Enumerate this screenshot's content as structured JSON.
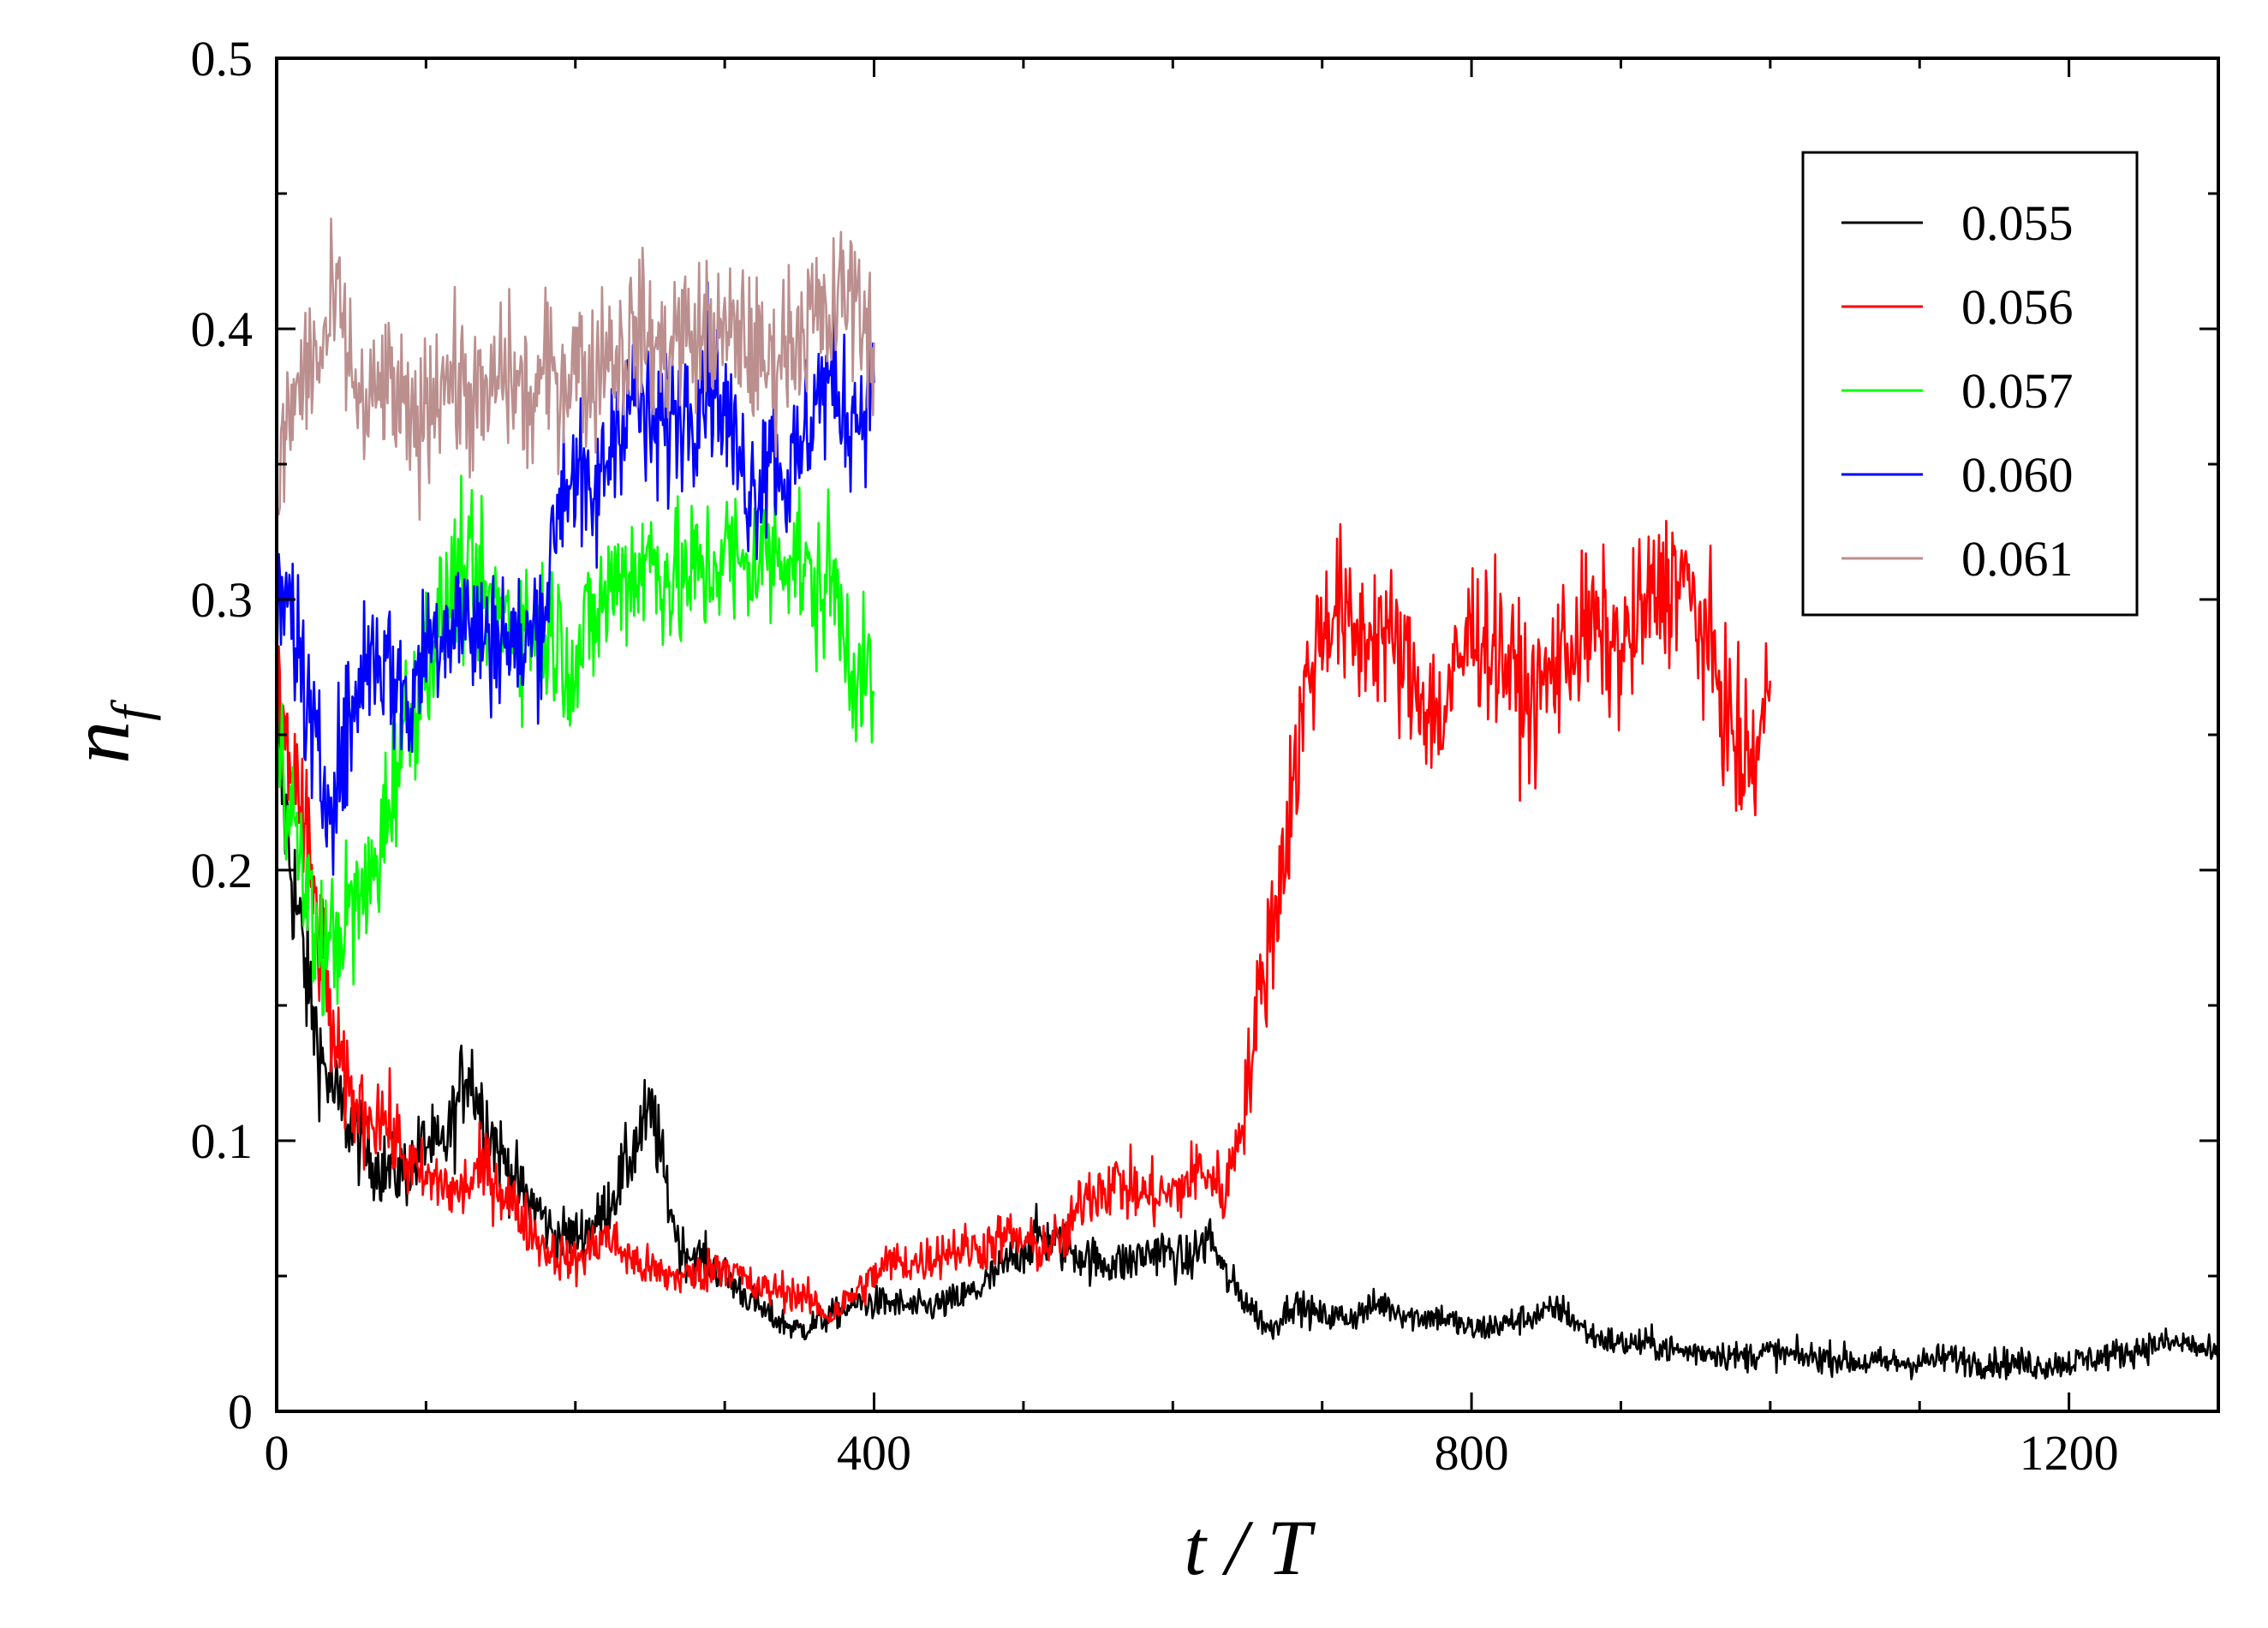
{
  "chart_data": {
    "type": "line",
    "xlabel": "t / T",
    "ylabel": "n_f",
    "xlim": [
      0,
      1300
    ],
    "ylim": [
      0,
      0.5
    ],
    "xticks": [
      0,
      400,
      800,
      1200
    ],
    "yticks": [
      0,
      0.1,
      0.2,
      0.3,
      0.4,
      0.5
    ],
    "xtick_labels": [
      "0",
      "400",
      "800",
      "1200"
    ],
    "ytick_labels": [
      "0",
      "0.1",
      "0.2",
      "0.3",
      "0.4",
      "0.5"
    ],
    "x_minor_step": 100,
    "y_minor_step": 0.05,
    "grid": false,
    "legend_position": "top-right",
    "series": [
      {
        "name": "0.055",
        "color": "#000000",
        "x_end": 1300,
        "points": [
          [
            0,
            0.25
          ],
          [
            10,
            0.2
          ],
          [
            20,
            0.16
          ],
          [
            30,
            0.13
          ],
          [
            40,
            0.115
          ],
          [
            50,
            0.105
          ],
          [
            60,
            0.095
          ],
          [
            70,
            0.09
          ],
          [
            80,
            0.088
          ],
          [
            90,
            0.09
          ],
          [
            100,
            0.1
          ],
          [
            110,
            0.095
          ],
          [
            120,
            0.11
          ],
          [
            128,
            0.13
          ],
          [
            135,
            0.115
          ],
          [
            150,
            0.095
          ],
          [
            165,
            0.08
          ],
          [
            175,
            0.075
          ],
          [
            185,
            0.065
          ],
          [
            200,
            0.065
          ],
          [
            215,
            0.07
          ],
          [
            230,
            0.085
          ],
          [
            245,
            0.105
          ],
          [
            252,
            0.11
          ],
          [
            260,
            0.085
          ],
          [
            270,
            0.06
          ],
          [
            290,
            0.055
          ],
          [
            310,
            0.045
          ],
          [
            330,
            0.035
          ],
          [
            350,
            0.03
          ],
          [
            370,
            0.035
          ],
          [
            390,
            0.04
          ],
          [
            410,
            0.04
          ],
          [
            430,
            0.038
          ],
          [
            450,
            0.04
          ],
          [
            470,
            0.045
          ],
          [
            490,
            0.055
          ],
          [
            510,
            0.065
          ],
          [
            530,
            0.06
          ],
          [
            550,
            0.055
          ],
          [
            570,
            0.055
          ],
          [
            590,
            0.06
          ],
          [
            610,
            0.055
          ],
          [
            625,
            0.065
          ],
          [
            635,
            0.05
          ],
          [
            650,
            0.04
          ],
          [
            665,
            0.03
          ],
          [
            680,
            0.04
          ],
          [
            700,
            0.035
          ],
          [
            720,
            0.035
          ],
          [
            740,
            0.04
          ],
          [
            760,
            0.035
          ],
          [
            780,
            0.035
          ],
          [
            800,
            0.03
          ],
          [
            820,
            0.032
          ],
          [
            840,
            0.035
          ],
          [
            860,
            0.038
          ],
          [
            880,
            0.028
          ],
          [
            900,
            0.025
          ],
          [
            920,
            0.025
          ],
          [
            940,
            0.022
          ],
          [
            960,
            0.022
          ],
          [
            980,
            0.02
          ],
          [
            1000,
            0.022
          ],
          [
            1020,
            0.02
          ],
          [
            1040,
            0.02
          ],
          [
            1060,
            0.018
          ],
          [
            1080,
            0.018
          ],
          [
            1100,
            0.018
          ],
          [
            1120,
            0.02
          ],
          [
            1140,
            0.018
          ],
          [
            1160,
            0.018
          ],
          [
            1180,
            0.017
          ],
          [
            1200,
            0.018
          ],
          [
            1220,
            0.02
          ],
          [
            1240,
            0.022
          ],
          [
            1260,
            0.025
          ],
          [
            1280,
            0.025
          ],
          [
            1300,
            0.02
          ]
        ]
      },
      {
        "name": "0.056",
        "color": "#ff0000",
        "x_end": 1000,
        "points": [
          [
            0,
            0.26
          ],
          [
            10,
            0.24
          ],
          [
            20,
            0.21
          ],
          [
            30,
            0.17
          ],
          [
            40,
            0.13
          ],
          [
            50,
            0.115
          ],
          [
            60,
            0.11
          ],
          [
            70,
            0.11
          ],
          [
            80,
            0.1
          ],
          [
            90,
            0.09
          ],
          [
            100,
            0.085
          ],
          [
            110,
            0.085
          ],
          [
            120,
            0.08
          ],
          [
            140,
            0.09
          ],
          [
            160,
            0.075
          ],
          [
            180,
            0.06
          ],
          [
            200,
            0.055
          ],
          [
            220,
            0.065
          ],
          [
            240,
            0.055
          ],
          [
            260,
            0.05
          ],
          [
            280,
            0.05
          ],
          [
            300,
            0.055
          ],
          [
            320,
            0.045
          ],
          [
            340,
            0.045
          ],
          [
            360,
            0.04
          ],
          [
            370,
            0.035
          ],
          [
            390,
            0.045
          ],
          [
            410,
            0.055
          ],
          [
            430,
            0.055
          ],
          [
            450,
            0.06
          ],
          [
            470,
            0.06
          ],
          [
            490,
            0.065
          ],
          [
            510,
            0.06
          ],
          [
            530,
            0.065
          ],
          [
            540,
            0.08
          ],
          [
            560,
            0.085
          ],
          [
            580,
            0.08
          ],
          [
            600,
            0.08
          ],
          [
            620,
            0.09
          ],
          [
            635,
            0.08
          ],
          [
            650,
            0.12
          ],
          [
            660,
            0.16
          ],
          [
            670,
            0.19
          ],
          [
            680,
            0.23
          ],
          [
            690,
            0.27
          ],
          [
            700,
            0.29
          ],
          [
            710,
            0.3
          ],
          [
            720,
            0.285
          ],
          [
            740,
            0.29
          ],
          [
            760,
            0.27
          ],
          [
            780,
            0.255
          ],
          [
            800,
            0.29
          ],
          [
            820,
            0.28
          ],
          [
            840,
            0.26
          ],
          [
            860,
            0.28
          ],
          [
            880,
            0.29
          ],
          [
            900,
            0.28
          ],
          [
            920,
            0.3
          ],
          [
            940,
            0.31
          ],
          [
            960,
            0.28
          ],
          [
            970,
            0.26
          ],
          [
            980,
            0.24
          ],
          [
            990,
            0.24
          ],
          [
            1000,
            0.27
          ]
        ]
      },
      {
        "name": "0.057",
        "color": "#00ff00",
        "x_end": 400,
        "points": [
          [
            0,
            0.26
          ],
          [
            10,
            0.22
          ],
          [
            20,
            0.19
          ],
          [
            30,
            0.17
          ],
          [
            40,
            0.175
          ],
          [
            50,
            0.185
          ],
          [
            60,
            0.19
          ],
          [
            70,
            0.21
          ],
          [
            80,
            0.24
          ],
          [
            90,
            0.26
          ],
          [
            100,
            0.28
          ],
          [
            110,
            0.29
          ],
          [
            120,
            0.31
          ],
          [
            130,
            0.305
          ],
          [
            140,
            0.3
          ],
          [
            150,
            0.295
          ],
          [
            160,
            0.29
          ],
          [
            170,
            0.29
          ],
          [
            180,
            0.29
          ],
          [
            190,
            0.285
          ],
          [
            200,
            0.275
          ],
          [
            210,
            0.29
          ],
          [
            220,
            0.3
          ],
          [
            230,
            0.31
          ],
          [
            240,
            0.31
          ],
          [
            250,
            0.315
          ],
          [
            260,
            0.31
          ],
          [
            270,
            0.305
          ],
          [
            280,
            0.31
          ],
          [
            290,
            0.31
          ],
          [
            300,
            0.32
          ],
          [
            310,
            0.31
          ],
          [
            320,
            0.315
          ],
          [
            330,
            0.315
          ],
          [
            340,
            0.32
          ],
          [
            350,
            0.315
          ],
          [
            360,
            0.3
          ],
          [
            370,
            0.31
          ],
          [
            380,
            0.29
          ],
          [
            390,
            0.27
          ],
          [
            400,
            0.265
          ]
        ]
      },
      {
        "name": "0.060",
        "color": "#0000ff",
        "x_end": 400,
        "points": [
          [
            0,
            0.29
          ],
          [
            10,
            0.3
          ],
          [
            20,
            0.26
          ],
          [
            30,
            0.23
          ],
          [
            40,
            0.235
          ],
          [
            50,
            0.255
          ],
          [
            60,
            0.28
          ],
          [
            70,
            0.28
          ],
          [
            80,
            0.27
          ],
          [
            90,
            0.26
          ],
          [
            100,
            0.285
          ],
          [
            110,
            0.29
          ],
          [
            120,
            0.295
          ],
          [
            130,
            0.29
          ],
          [
            140,
            0.285
          ],
          [
            150,
            0.29
          ],
          [
            160,
            0.28
          ],
          [
            170,
            0.285
          ],
          [
            180,
            0.3
          ],
          [
            190,
            0.34
          ],
          [
            200,
            0.35
          ],
          [
            210,
            0.33
          ],
          [
            220,
            0.35
          ],
          [
            230,
            0.37
          ],
          [
            240,
            0.375
          ],
          [
            250,
            0.36
          ],
          [
            260,
            0.365
          ],
          [
            270,
            0.37
          ],
          [
            280,
            0.375
          ],
          [
            290,
            0.385
          ],
          [
            300,
            0.37
          ],
          [
            310,
            0.35
          ],
          [
            320,
            0.34
          ],
          [
            330,
            0.36
          ],
          [
            340,
            0.345
          ],
          [
            350,
            0.35
          ],
          [
            360,
            0.375
          ],
          [
            370,
            0.38
          ],
          [
            380,
            0.37
          ],
          [
            390,
            0.37
          ],
          [
            400,
            0.38
          ]
        ]
      },
      {
        "name": "0.061",
        "color": "#bc8f8f",
        "x_end": 400,
        "points": [
          [
            0,
            0.34
          ],
          [
            10,
            0.37
          ],
          [
            20,
            0.385
          ],
          [
            30,
            0.39
          ],
          [
            40,
            0.41
          ],
          [
            50,
            0.385
          ],
          [
            60,
            0.365
          ],
          [
            70,
            0.38
          ],
          [
            80,
            0.375
          ],
          [
            90,
            0.36
          ],
          [
            100,
            0.37
          ],
          [
            110,
            0.385
          ],
          [
            120,
            0.38
          ],
          [
            130,
            0.375
          ],
          [
            140,
            0.37
          ],
          [
            150,
            0.385
          ],
          [
            160,
            0.38
          ],
          [
            170,
            0.37
          ],
          [
            180,
            0.385
          ],
          [
            190,
            0.38
          ],
          [
            200,
            0.39
          ],
          [
            210,
            0.38
          ],
          [
            220,
            0.395
          ],
          [
            230,
            0.39
          ],
          [
            240,
            0.4
          ],
          [
            250,
            0.395
          ],
          [
            260,
            0.39
          ],
          [
            270,
            0.4
          ],
          [
            280,
            0.395
          ],
          [
            290,
            0.4
          ],
          [
            300,
            0.395
          ],
          [
            310,
            0.4
          ],
          [
            320,
            0.39
          ],
          [
            330,
            0.385
          ],
          [
            340,
            0.395
          ],
          [
            350,
            0.4
          ],
          [
            360,
            0.405
          ],
          [
            370,
            0.4
          ],
          [
            380,
            0.415
          ],
          [
            390,
            0.41
          ],
          [
            400,
            0.395
          ]
        ]
      }
    ]
  }
}
